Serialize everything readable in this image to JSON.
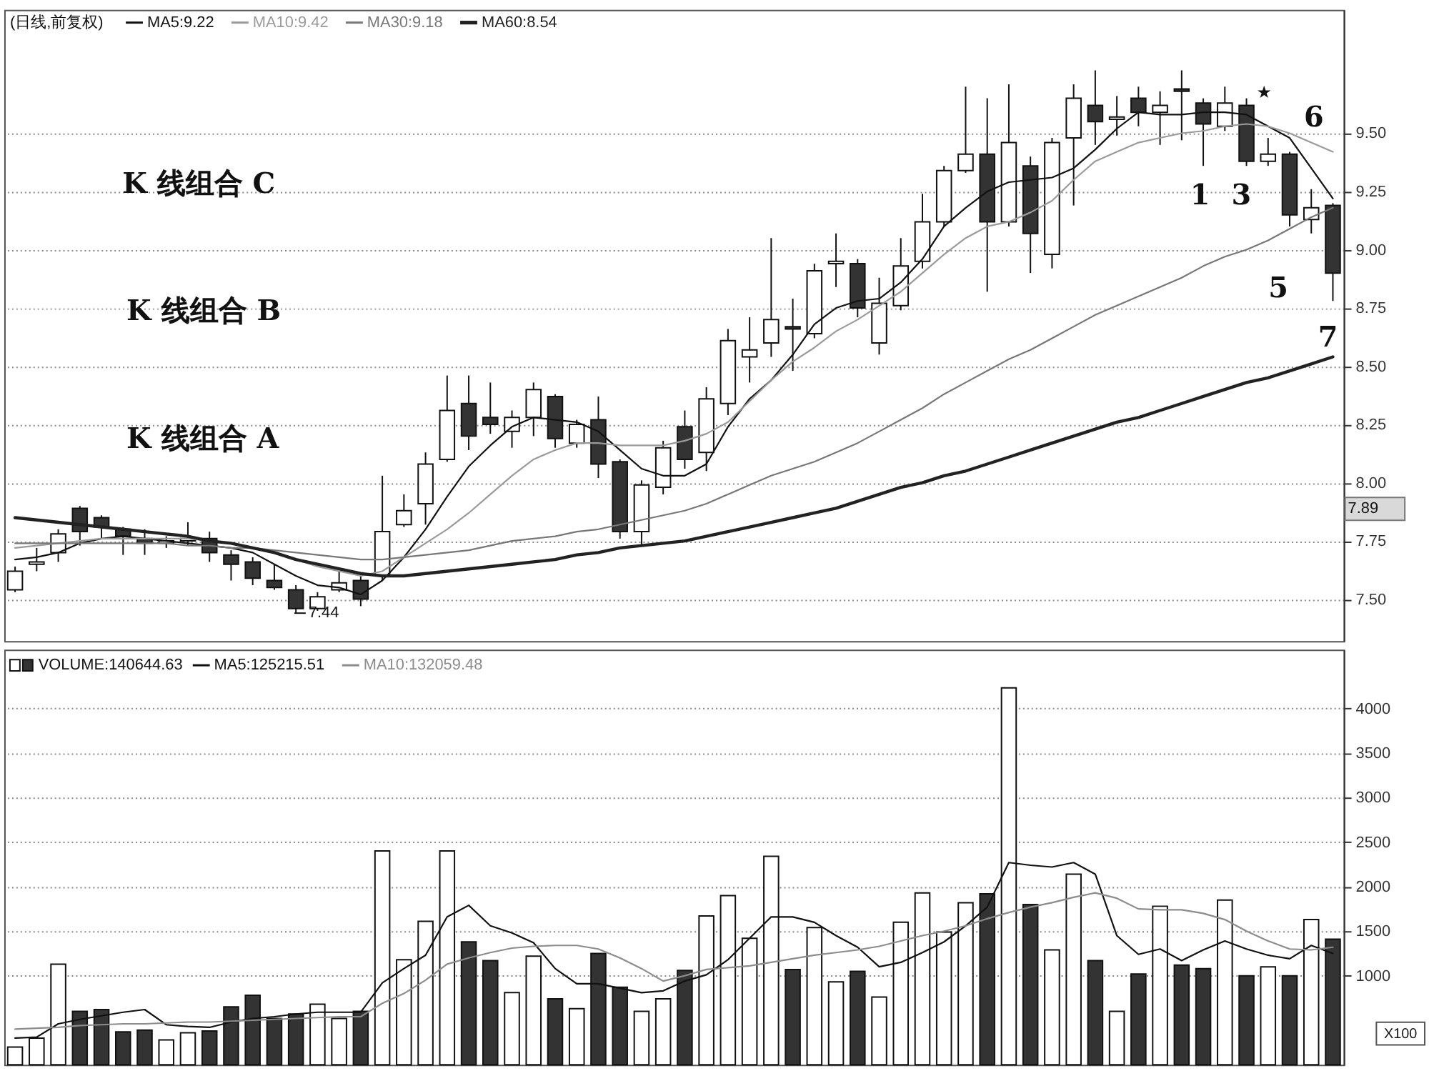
{
  "chart_data": [
    {
      "type": "candlestick",
      "title": "(日线,前复权)",
      "categories": [
        null,
        null,
        null,
        null,
        null,
        null,
        null,
        null,
        null,
        null,
        null,
        null,
        null,
        null,
        null,
        null,
        null,
        null,
        null,
        null,
        null,
        null,
        null,
        null,
        null,
        null,
        null,
        null,
        null,
        null,
        null,
        null,
        null,
        null,
        null,
        null,
        null,
        null,
        null,
        null,
        null,
        null,
        null,
        null,
        null,
        null,
        null,
        null,
        null,
        null,
        null,
        null,
        null,
        null,
        null,
        null,
        null,
        null,
        null,
        null,
        null,
        null
      ],
      "ohlc": [
        [
          7.54,
          7.64,
          7.53,
          7.62
        ],
        [
          7.65,
          7.72,
          7.62,
          7.66
        ],
        [
          7.7,
          7.8,
          7.66,
          7.78
        ],
        [
          7.89,
          7.9,
          7.73,
          7.79
        ],
        [
          7.85,
          7.86,
          7.76,
          7.81
        ],
        [
          7.8,
          7.81,
          7.69,
          7.77
        ],
        [
          7.76,
          7.8,
          7.69,
          7.74
        ],
        [
          7.74,
          7.77,
          7.72,
          7.75
        ],
        [
          7.75,
          7.83,
          7.73,
          7.76
        ],
        [
          7.76,
          7.79,
          7.66,
          7.7
        ],
        [
          7.69,
          7.71,
          7.58,
          7.65
        ],
        [
          7.66,
          7.68,
          7.56,
          7.59
        ],
        [
          7.58,
          7.65,
          7.54,
          7.55
        ],
        [
          7.54,
          7.56,
          7.44,
          7.46
        ],
        [
          7.46,
          7.53,
          7.45,
          7.51
        ],
        [
          7.54,
          7.62,
          7.53,
          7.57
        ],
        [
          7.58,
          7.6,
          7.47,
          7.5
        ],
        [
          7.6,
          8.03,
          7.58,
          7.79
        ],
        [
          7.82,
          7.95,
          7.81,
          7.88
        ],
        [
          7.91,
          8.13,
          7.82,
          8.08
        ],
        [
          8.1,
          8.46,
          8.09,
          8.31
        ],
        [
          8.34,
          8.46,
          8.14,
          8.2
        ],
        [
          8.28,
          8.43,
          8.21,
          8.25
        ],
        [
          8.22,
          8.31,
          8.15,
          8.28
        ],
        [
          8.28,
          8.43,
          8.2,
          8.4
        ],
        [
          8.37,
          8.38,
          8.15,
          8.19
        ],
        [
          8.17,
          8.27,
          8.15,
          8.25
        ],
        [
          8.27,
          8.37,
          8.02,
          8.08
        ],
        [
          8.09,
          8.1,
          7.76,
          7.79
        ],
        [
          7.79,
          8.01,
          7.73,
          7.99
        ],
        [
          7.98,
          8.18,
          7.95,
          8.15
        ],
        [
          8.24,
          8.31,
          8.06,
          8.1
        ],
        [
          8.13,
          8.41,
          8.05,
          8.36
        ],
        [
          8.34,
          8.66,
          8.29,
          8.61
        ],
        [
          8.54,
          8.71,
          8.43,
          8.57
        ],
        [
          8.6,
          9.05,
          8.54,
          8.7
        ],
        [
          8.67,
          8.79,
          8.48,
          8.66
        ],
        [
          8.64,
          8.94,
          8.62,
          8.91
        ],
        [
          8.94,
          9.07,
          8.84,
          8.95
        ],
        [
          8.94,
          8.96,
          8.71,
          8.75
        ],
        [
          8.6,
          8.88,
          8.55,
          8.77
        ],
        [
          8.76,
          9.05,
          8.74,
          8.93
        ],
        [
          8.95,
          9.24,
          8.92,
          9.12
        ],
        [
          9.12,
          9.36,
          9.1,
          9.34
        ],
        [
          9.34,
          9.7,
          9.33,
          9.41
        ],
        [
          9.41,
          9.65,
          8.82,
          9.12
        ],
        [
          9.12,
          9.71,
          9.1,
          9.46
        ],
        [
          9.36,
          9.4,
          8.9,
          9.07
        ],
        [
          8.98,
          9.48,
          8.92,
          9.46
        ],
        [
          9.48,
          9.71,
          9.19,
          9.65
        ],
        [
          9.62,
          9.77,
          9.45,
          9.55
        ],
        [
          9.56,
          9.66,
          9.49,
          9.57
        ],
        [
          9.65,
          9.7,
          9.53,
          9.59
        ],
        [
          9.59,
          9.68,
          9.45,
          9.62
        ],
        [
          9.69,
          9.77,
          9.47,
          9.68
        ],
        [
          9.63,
          9.65,
          9.36,
          9.54
        ],
        [
          9.53,
          9.7,
          9.51,
          9.63
        ],
        [
          9.62,
          9.65,
          9.36,
          9.38
        ],
        [
          9.38,
          9.48,
          9.36,
          9.41
        ],
        [
          9.41,
          9.42,
          9.1,
          9.15
        ],
        [
          9.13,
          9.26,
          9.07,
          9.18
        ],
        [
          9.19,
          9.2,
          8.78,
          8.9
        ]
      ],
      "colors": [
        "#ffffff",
        "#ffffff",
        "#ffffff",
        "#333333",
        "#333333",
        "#333333",
        "#333333",
        "#ffffff",
        "#ffffff",
        "#333333",
        "#333333",
        "#333333",
        "#333333",
        "#333333",
        "#ffffff",
        "#ffffff",
        "#333333",
        "#ffffff",
        "#ffffff",
        "#ffffff",
        "#ffffff",
        "#333333",
        "#333333",
        "#ffffff",
        "#ffffff",
        "#333333",
        "#ffffff",
        "#333333",
        "#333333",
        "#ffffff",
        "#ffffff",
        "#333333",
        "#ffffff",
        "#ffffff",
        "#ffffff",
        "#ffffff",
        "#333333",
        "#ffffff",
        "#ffffff",
        "#333333",
        "#ffffff",
        "#ffffff",
        "#ffffff",
        "#ffffff",
        "#ffffff",
        "#333333",
        "#ffffff",
        "#333333",
        "#ffffff",
        "#ffffff",
        "#333333",
        "#ffffff",
        "#333333",
        "#ffffff",
        "#333333",
        "#333333",
        "#ffffff",
        "#333333",
        "#ffffff",
        "#333333",
        "#ffffff",
        "#333333"
      ],
      "series": [
        {
          "name": "MA5:9.22",
          "type": "line",
          "color": "#111111",
          "values": [
            7.67,
            7.68,
            7.7,
            7.74,
            7.76,
            7.77,
            7.76,
            7.75,
            7.74,
            7.73,
            7.72,
            7.7,
            7.65,
            7.6,
            7.56,
            7.55,
            7.52,
            7.58,
            7.68,
            7.8,
            7.94,
            8.07,
            8.16,
            8.24,
            8.28,
            8.27,
            8.26,
            8.22,
            8.14,
            8.06,
            8.03,
            8.03,
            8.08,
            8.24,
            8.36,
            8.44,
            8.55,
            8.68,
            8.75,
            8.78,
            8.79,
            8.86,
            8.96,
            9.1,
            9.18,
            9.25,
            9.29,
            9.3,
            9.31,
            9.35,
            9.43,
            9.52,
            9.59,
            9.58,
            9.58,
            9.59,
            9.59,
            9.58,
            9.53,
            9.48,
            9.35,
            9.22
          ]
        },
        {
          "name": "MA10:9.42",
          "type": "line",
          "color": "#9a9a9a",
          "values": [
            7.72,
            7.73,
            7.74,
            7.75,
            7.76,
            7.76,
            7.76,
            7.76,
            7.76,
            7.75,
            7.74,
            7.72,
            7.7,
            7.67,
            7.64,
            7.62,
            7.6,
            7.62,
            7.68,
            7.74,
            7.8,
            7.87,
            7.95,
            8.03,
            8.1,
            8.14,
            8.17,
            8.17,
            8.16,
            8.16,
            8.16,
            8.18,
            8.21,
            8.26,
            8.35,
            8.44,
            8.52,
            8.58,
            8.65,
            8.7,
            8.76,
            8.82,
            8.9,
            8.98,
            9.05,
            9.1,
            9.12,
            9.16,
            9.21,
            9.3,
            9.38,
            9.42,
            9.46,
            9.48,
            9.5,
            9.51,
            9.53,
            9.54,
            9.53,
            9.5,
            9.46,
            9.42
          ]
        },
        {
          "name": "MA30:9.18",
          "type": "line",
          "color": "#777777",
          "values": [
            7.74,
            7.74,
            7.74,
            7.74,
            7.74,
            7.74,
            7.74,
            7.74,
            7.73,
            7.73,
            7.72,
            7.72,
            7.71,
            7.7,
            7.69,
            7.68,
            7.67,
            7.67,
            7.68,
            7.69,
            7.7,
            7.71,
            7.73,
            7.75,
            7.76,
            7.77,
            7.79,
            7.8,
            7.82,
            7.84,
            7.86,
            7.88,
            7.91,
            7.95,
            7.99,
            8.03,
            8.06,
            8.09,
            8.13,
            8.17,
            8.22,
            8.27,
            8.32,
            8.38,
            8.43,
            8.48,
            8.53,
            8.57,
            8.62,
            8.67,
            8.72,
            8.76,
            8.8,
            8.84,
            8.88,
            8.93,
            8.97,
            9.0,
            9.04,
            9.09,
            9.14,
            9.18
          ]
        },
        {
          "name": "MA60:8.54",
          "type": "line",
          "color": "#222222",
          "values": [
            7.85,
            7.84,
            7.83,
            7.82,
            7.81,
            7.8,
            7.79,
            7.78,
            7.77,
            7.75,
            7.74,
            7.72,
            7.7,
            7.67,
            7.65,
            7.63,
            7.61,
            7.6,
            7.6,
            7.61,
            7.62,
            7.63,
            7.64,
            7.65,
            7.66,
            7.67,
            7.69,
            7.7,
            7.72,
            7.73,
            7.74,
            7.75,
            7.77,
            7.79,
            7.81,
            7.83,
            7.85,
            7.87,
            7.89,
            7.92,
            7.95,
            7.98,
            8.0,
            8.03,
            8.05,
            8.08,
            8.11,
            8.14,
            8.17,
            8.2,
            8.23,
            8.26,
            8.28,
            8.31,
            8.34,
            8.37,
            8.4,
            8.43,
            8.45,
            8.48,
            8.51,
            8.54
          ]
        }
      ],
      "ylim": [
        7.32,
        10.03
      ],
      "yticks": [
        {
          "value": 7.5,
          "label": "7.50"
        },
        {
          "value": 7.75,
          "label": "7.75"
        },
        {
          "value": 8.0,
          "label": "8.00"
        },
        {
          "value": 8.25,
          "label": "8.25"
        },
        {
          "value": 8.5,
          "label": "8.50"
        },
        {
          "value": 8.75,
          "label": "8.75"
        },
        {
          "value": 9.0,
          "label": "9.00"
        },
        {
          "value": 9.25,
          "label": "9.25"
        },
        {
          "value": 9.5,
          "label": "9.50"
        }
      ],
      "grid": "y",
      "legend": "top left",
      "tick_labels": "y",
      "annotations": [
        "K 线组合 C",
        "K 线组合 B",
        "K 线组合 A",
        "1",
        "3",
        "6",
        "5",
        "7",
        "★",
        {
          "text": "7.44",
          "y": 7.44
        },
        "7.89"
      ]
    },
    {
      "type": "bar",
      "categories": [
        null,
        null,
        null,
        null,
        null,
        null,
        null,
        null,
        null,
        null,
        null,
        null,
        null,
        null,
        null,
        null,
        null,
        null,
        null,
        null,
        null,
        null,
        null,
        null,
        null,
        null,
        null,
        null,
        null,
        null,
        null,
        null,
        null,
        null,
        null,
        null,
        null,
        null,
        null,
        null,
        null,
        null,
        null,
        null,
        null,
        null,
        null,
        null,
        null,
        null,
        null,
        null,
        null,
        null,
        null,
        null,
        null,
        null,
        null,
        null,
        null,
        null
      ],
      "series": [
        {
          "name": "VOLUME:140644.63",
          "type": "bar",
          "colors": [
            "#ffffff",
            "#ffffff",
            "#ffffff",
            "#333333",
            "#333333",
            "#333333",
            "#333333",
            "#ffffff",
            "#ffffff",
            "#333333",
            "#333333",
            "#333333",
            "#333333",
            "#333333",
            "#ffffff",
            "#ffffff",
            "#333333",
            "#ffffff",
            "#ffffff",
            "#ffffff",
            "#ffffff",
            "#333333",
            "#333333",
            "#ffffff",
            "#ffffff",
            "#333333",
            "#ffffff",
            "#333333",
            "#333333",
            "#ffffff",
            "#ffffff",
            "#333333",
            "#ffffff",
            "#ffffff",
            "#ffffff",
            "#ffffff",
            "#333333",
            "#ffffff",
            "#ffffff",
            "#333333",
            "#ffffff",
            "#ffffff",
            "#ffffff",
            "#ffffff",
            "#ffffff",
            "#333333",
            "#ffffff",
            "#333333",
            "#ffffff",
            "#ffffff",
            "#333333",
            "#ffffff",
            "#333333",
            "#ffffff",
            "#333333",
            "#333333",
            "#ffffff",
            "#333333",
            "#ffffff",
            "#333333",
            "#ffffff",
            "#333333"
          ],
          "values": [
            200,
            300,
            1130,
            600,
            620,
            370,
            390,
            280,
            360,
            380,
            650,
            780,
            520,
            570,
            680,
            520,
            600,
            2400,
            1180,
            1610,
            2400,
            1380,
            1170,
            810,
            1220,
            740,
            630,
            1250,
            870,
            600,
            740,
            1060,
            1670,
            1900,
            1420,
            2340,
            1070,
            1540,
            930,
            1050,
            760,
            1600,
            1930,
            1490,
            1820,
            1920,
            4230,
            1800,
            1290,
            2140,
            1170,
            600,
            1020,
            1780,
            1120,
            1080,
            1850,
            1000,
            1100,
            1000,
            1630,
            1410
          ]
        },
        {
          "name": "MA5:125215.51",
          "type": "line",
          "color": "#111111",
          "values": [
            300,
            310,
            460,
            510,
            550,
            590,
            620,
            450,
            430,
            420,
            480,
            520,
            540,
            570,
            590,
            590,
            590,
            920,
            1080,
            1230,
            1660,
            1790,
            1560,
            1480,
            1370,
            1080,
            910,
            910,
            860,
            810,
            830,
            940,
            1010,
            1180,
            1420,
            1660,
            1660,
            1600,
            1450,
            1320,
            1100,
            1150,
            1260,
            1380,
            1560,
            1770,
            2270,
            2240,
            2220,
            2270,
            2140,
            1450,
            1240,
            1300,
            1170,
            1290,
            1390,
            1300,
            1230,
            1190,
            1340,
            1250
          ]
        },
        {
          "name": "MA10:132059.48",
          "type": "line",
          "color": "#8c8c8c",
          "values": [
            400,
            410,
            420,
            440,
            450,
            460,
            460,
            470,
            480,
            480,
            490,
            500,
            510,
            520,
            530,
            540,
            540,
            690,
            800,
            950,
            1130,
            1200,
            1260,
            1310,
            1330,
            1340,
            1340,
            1300,
            1200,
            1080,
            940,
            1000,
            1070,
            1090,
            1110,
            1150,
            1190,
            1230,
            1260,
            1290,
            1330,
            1390,
            1450,
            1500,
            1560,
            1640,
            1710,
            1770,
            1820,
            1880,
            1930,
            1870,
            1750,
            1740,
            1740,
            1700,
            1630,
            1500,
            1390,
            1300,
            1290,
            1320
          ]
        }
      ],
      "ylim": [
        0,
        4660
      ],
      "yticks": [
        1000,
        1500,
        2000,
        2500,
        3000,
        3500,
        4000
      ],
      "grid": "y",
      "legend": "top left",
      "tick_labels": "y",
      "annotations": [
        "X100"
      ]
    }
  ]
}
